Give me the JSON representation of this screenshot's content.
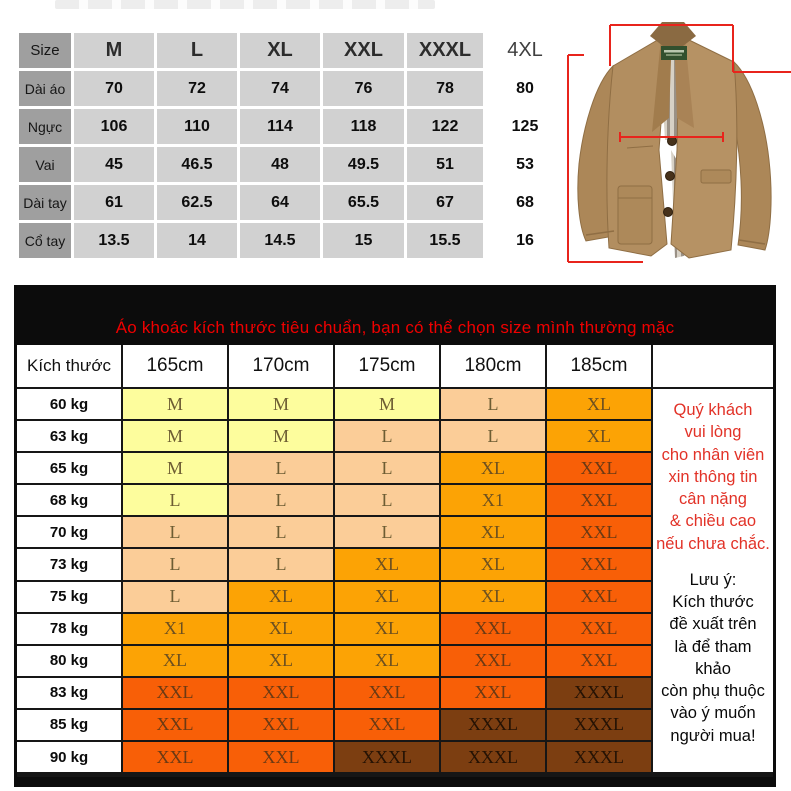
{
  "size_table": {
    "header": [
      "Size",
      "M",
      "L",
      "XL",
      "XXL",
      "XXXL",
      "4XL"
    ],
    "rows": [
      {
        "label": "Dài áo",
        "values": [
          "70",
          "72",
          "74",
          "76",
          "78",
          "80"
        ]
      },
      {
        "label": "Ngực",
        "values": [
          "106",
          "110",
          "114",
          "118",
          "122",
          "125"
        ]
      },
      {
        "label": "Vai",
        "values": [
          "45",
          "46.5",
          "48",
          "49.5",
          "51",
          "53"
        ]
      },
      {
        "label": "Dài tay",
        "values": [
          "61",
          "62.5",
          "64",
          "65.5",
          "67",
          "68"
        ]
      },
      {
        "label": "Cổ tay",
        "values": [
          "13.5",
          "14",
          "14.5",
          "15",
          "15.5",
          "16"
        ]
      }
    ]
  },
  "jacket": {
    "description": "khaki-blazer-with-red-measurement-lines",
    "body_color": "#b28e60",
    "measure_line_color": "#e8241c"
  },
  "fit_table": {
    "banner": "Áo khoác kích thước tiêu chuẩn, bạn có thể chọn size mình thường mặc",
    "corner_label": "Kích thước",
    "height_headers": [
      "165cm",
      "170cm",
      "175cm",
      "180cm",
      "185cm"
    ],
    "weights": [
      "60 kg",
      "63 kg",
      "65 kg",
      "68 kg",
      "70 kg",
      "73 kg",
      "75 kg",
      "78 kg",
      "80 kg",
      "83 kg",
      "85 kg",
      "90 kg"
    ],
    "cells": [
      [
        {
          "s": "M",
          "k": "y"
        },
        {
          "s": "M",
          "k": "y"
        },
        {
          "s": "M",
          "k": "y"
        },
        {
          "s": "L",
          "k": "p"
        },
        {
          "s": "XL",
          "k": "o"
        }
      ],
      [
        {
          "s": "M",
          "k": "y"
        },
        {
          "s": "M",
          "k": "y"
        },
        {
          "s": "L",
          "k": "p"
        },
        {
          "s": "L",
          "k": "p"
        },
        {
          "s": "XL",
          "k": "o"
        }
      ],
      [
        {
          "s": "M",
          "k": "y"
        },
        {
          "s": "L",
          "k": "p"
        },
        {
          "s": "L",
          "k": "p"
        },
        {
          "s": "XL",
          "k": "o"
        },
        {
          "s": "XXL",
          "k": "r"
        }
      ],
      [
        {
          "s": "L",
          "k": "y"
        },
        {
          "s": "L",
          "k": "p"
        },
        {
          "s": "L",
          "k": "p"
        },
        {
          "s": "X1",
          "k": "o"
        },
        {
          "s": "XXL",
          "k": "r"
        }
      ],
      [
        {
          "s": "L",
          "k": "p"
        },
        {
          "s": "L",
          "k": "p"
        },
        {
          "s": "L",
          "k": "p"
        },
        {
          "s": "XL",
          "k": "o"
        },
        {
          "s": "XXL",
          "k": "r"
        }
      ],
      [
        {
          "s": "L",
          "k": "p"
        },
        {
          "s": "L",
          "k": "p"
        },
        {
          "s": "XL",
          "k": "o"
        },
        {
          "s": "XL",
          "k": "o"
        },
        {
          "s": "XXL",
          "k": "r"
        }
      ],
      [
        {
          "s": "L",
          "k": "p"
        },
        {
          "s": "XL",
          "k": "o"
        },
        {
          "s": "XL",
          "k": "o"
        },
        {
          "s": "XL",
          "k": "o"
        },
        {
          "s": "XXL",
          "k": "r"
        }
      ],
      [
        {
          "s": "X1",
          "k": "o"
        },
        {
          "s": "XL",
          "k": "o"
        },
        {
          "s": "XL",
          "k": "o"
        },
        {
          "s": "XXL",
          "k": "r"
        },
        {
          "s": "XXL",
          "k": "r"
        }
      ],
      [
        {
          "s": "XL",
          "k": "o"
        },
        {
          "s": "XL",
          "k": "o"
        },
        {
          "s": "XL",
          "k": "o"
        },
        {
          "s": "XXL",
          "k": "r"
        },
        {
          "s": "XXL",
          "k": "r"
        }
      ],
      [
        {
          "s": "XXL",
          "k": "r"
        },
        {
          "s": "XXL",
          "k": "r"
        },
        {
          "s": "XXL",
          "k": "r"
        },
        {
          "s": "XXL",
          "k": "r"
        },
        {
          "s": "XXXL",
          "k": "b"
        }
      ],
      [
        {
          "s": "XXL",
          "k": "r"
        },
        {
          "s": "XXL",
          "k": "r"
        },
        {
          "s": "XXL",
          "k": "r"
        },
        {
          "s": "XXXL",
          "k": "b"
        },
        {
          "s": "XXXL",
          "k": "b"
        }
      ],
      [
        {
          "s": "XXL",
          "k": "r"
        },
        {
          "s": "XXL",
          "k": "r"
        },
        {
          "s": "XXXL",
          "k": "b"
        },
        {
          "s": "XXXL",
          "k": "b"
        },
        {
          "s": "XXXL",
          "k": "b"
        }
      ]
    ],
    "cell_colors": {
      "y": "#fdfd9d",
      "p": "#fbcd98",
      "o": "#fca305",
      "r": "#f85f07",
      "b": "#7c3e11"
    },
    "cell_text_colors": {
      "y": "#6d5d33",
      "p": "#6d5d33",
      "o": "#6d5020",
      "r": "#6b3a14",
      "b": "#241204"
    },
    "note_red": "Quý khách\nvui lòng\ncho nhân viên\nxin thông tin\ncân nặng\n& chiều cao\nnếu chưa chắc.",
    "note_black": "Lưu ý:\nKích thước\nđề xuất trên\nlà để tham khảo\ncòn phụ thuộc\nvào ý muốn\nngười mua!"
  }
}
